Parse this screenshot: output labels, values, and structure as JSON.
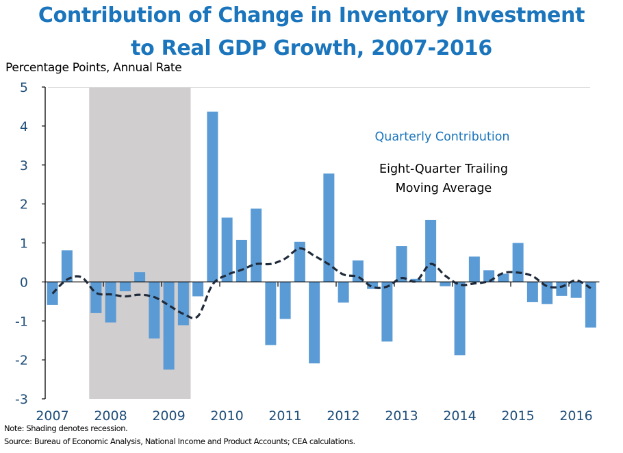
{
  "chart_data": {
    "type": "bar",
    "title": "Contribution of Change in Inventory Investment to Real GDP Growth, 2007-2016",
    "title_lines": [
      "Contribution of Change in Inventory Investment",
      "to Real GDP Growth, 2007-2016"
    ],
    "ylabel": "Percentage Points, Annual Rate",
    "xlabel": "",
    "ylim": [
      -3,
      5
    ],
    "yticks": [
      5,
      4,
      3,
      2,
      1,
      0,
      -1,
      -2,
      -3
    ],
    "year_labels": [
      "2007",
      "2008",
      "2009",
      "2010",
      "2011",
      "2012",
      "2013",
      "2014",
      "2015",
      "2016"
    ],
    "categories": [
      "2007Q1",
      "2007Q2",
      "2007Q3",
      "2007Q4",
      "2008Q1",
      "2008Q2",
      "2008Q3",
      "2008Q4",
      "2009Q1",
      "2009Q2",
      "2009Q3",
      "2009Q4",
      "2010Q1",
      "2010Q2",
      "2010Q3",
      "2010Q4",
      "2011Q1",
      "2011Q2",
      "2011Q3",
      "2011Q4",
      "2012Q1",
      "2012Q2",
      "2012Q3",
      "2012Q4",
      "2013Q1",
      "2013Q2",
      "2013Q3",
      "2013Q4",
      "2014Q1",
      "2014Q2",
      "2014Q3",
      "2014Q4",
      "2015Q1",
      "2015Q2",
      "2015Q3",
      "2015Q4",
      "2016Q1",
      "2016Q2"
    ],
    "series": [
      {
        "name": "Quarterly Contribution",
        "type": "bar",
        "color": "#5b9bd5",
        "values": [
          -0.59,
          0.81,
          0.0,
          -0.8,
          -1.04,
          -0.24,
          0.25,
          -1.45,
          -2.25,
          -1.11,
          -0.37,
          4.37,
          1.65,
          1.08,
          1.88,
          -1.62,
          -0.95,
          1.03,
          -2.09,
          2.78,
          -0.53,
          0.55,
          -0.18,
          -1.53,
          0.92,
          0.08,
          1.59,
          -0.11,
          -1.88,
          0.65,
          0.3,
          0.21,
          1.0,
          -0.52,
          -0.57,
          -0.36,
          -0.41,
          -1.17
        ]
      },
      {
        "name": "Eight-Quarter Trailing Moving Average",
        "type": "line",
        "style": "dashed",
        "color": "#1f2a3a",
        "values": [
          -0.3,
          0.06,
          0.12,
          -0.28,
          -0.32,
          -0.37,
          -0.33,
          -0.39,
          -0.6,
          -0.82,
          -0.88,
          -0.07,
          0.18,
          0.31,
          0.46,
          0.46,
          0.6,
          0.86,
          0.67,
          0.45,
          0.19,
          0.13,
          -0.13,
          -0.12,
          0.1,
          0.02,
          0.46,
          0.16,
          -0.07,
          -0.04,
          0.02,
          0.23,
          0.24,
          0.15,
          -0.11,
          -0.12,
          0.04,
          -0.16
        ]
      }
    ],
    "recession_shading": {
      "start": "2007Q4",
      "end": "2009Q2",
      "color": "#d0cece"
    },
    "legend": {
      "placement": "top-right",
      "entries": [
        "Quarterly Contribution",
        "Eight-Quarter Trailing",
        "Moving Average"
      ]
    },
    "grid": false
  },
  "notes": {
    "note": "Note: Shading denotes recession.",
    "source": "Source: Bureau of Economic Analysis, National Income and Product Accounts; CEA calculations."
  }
}
